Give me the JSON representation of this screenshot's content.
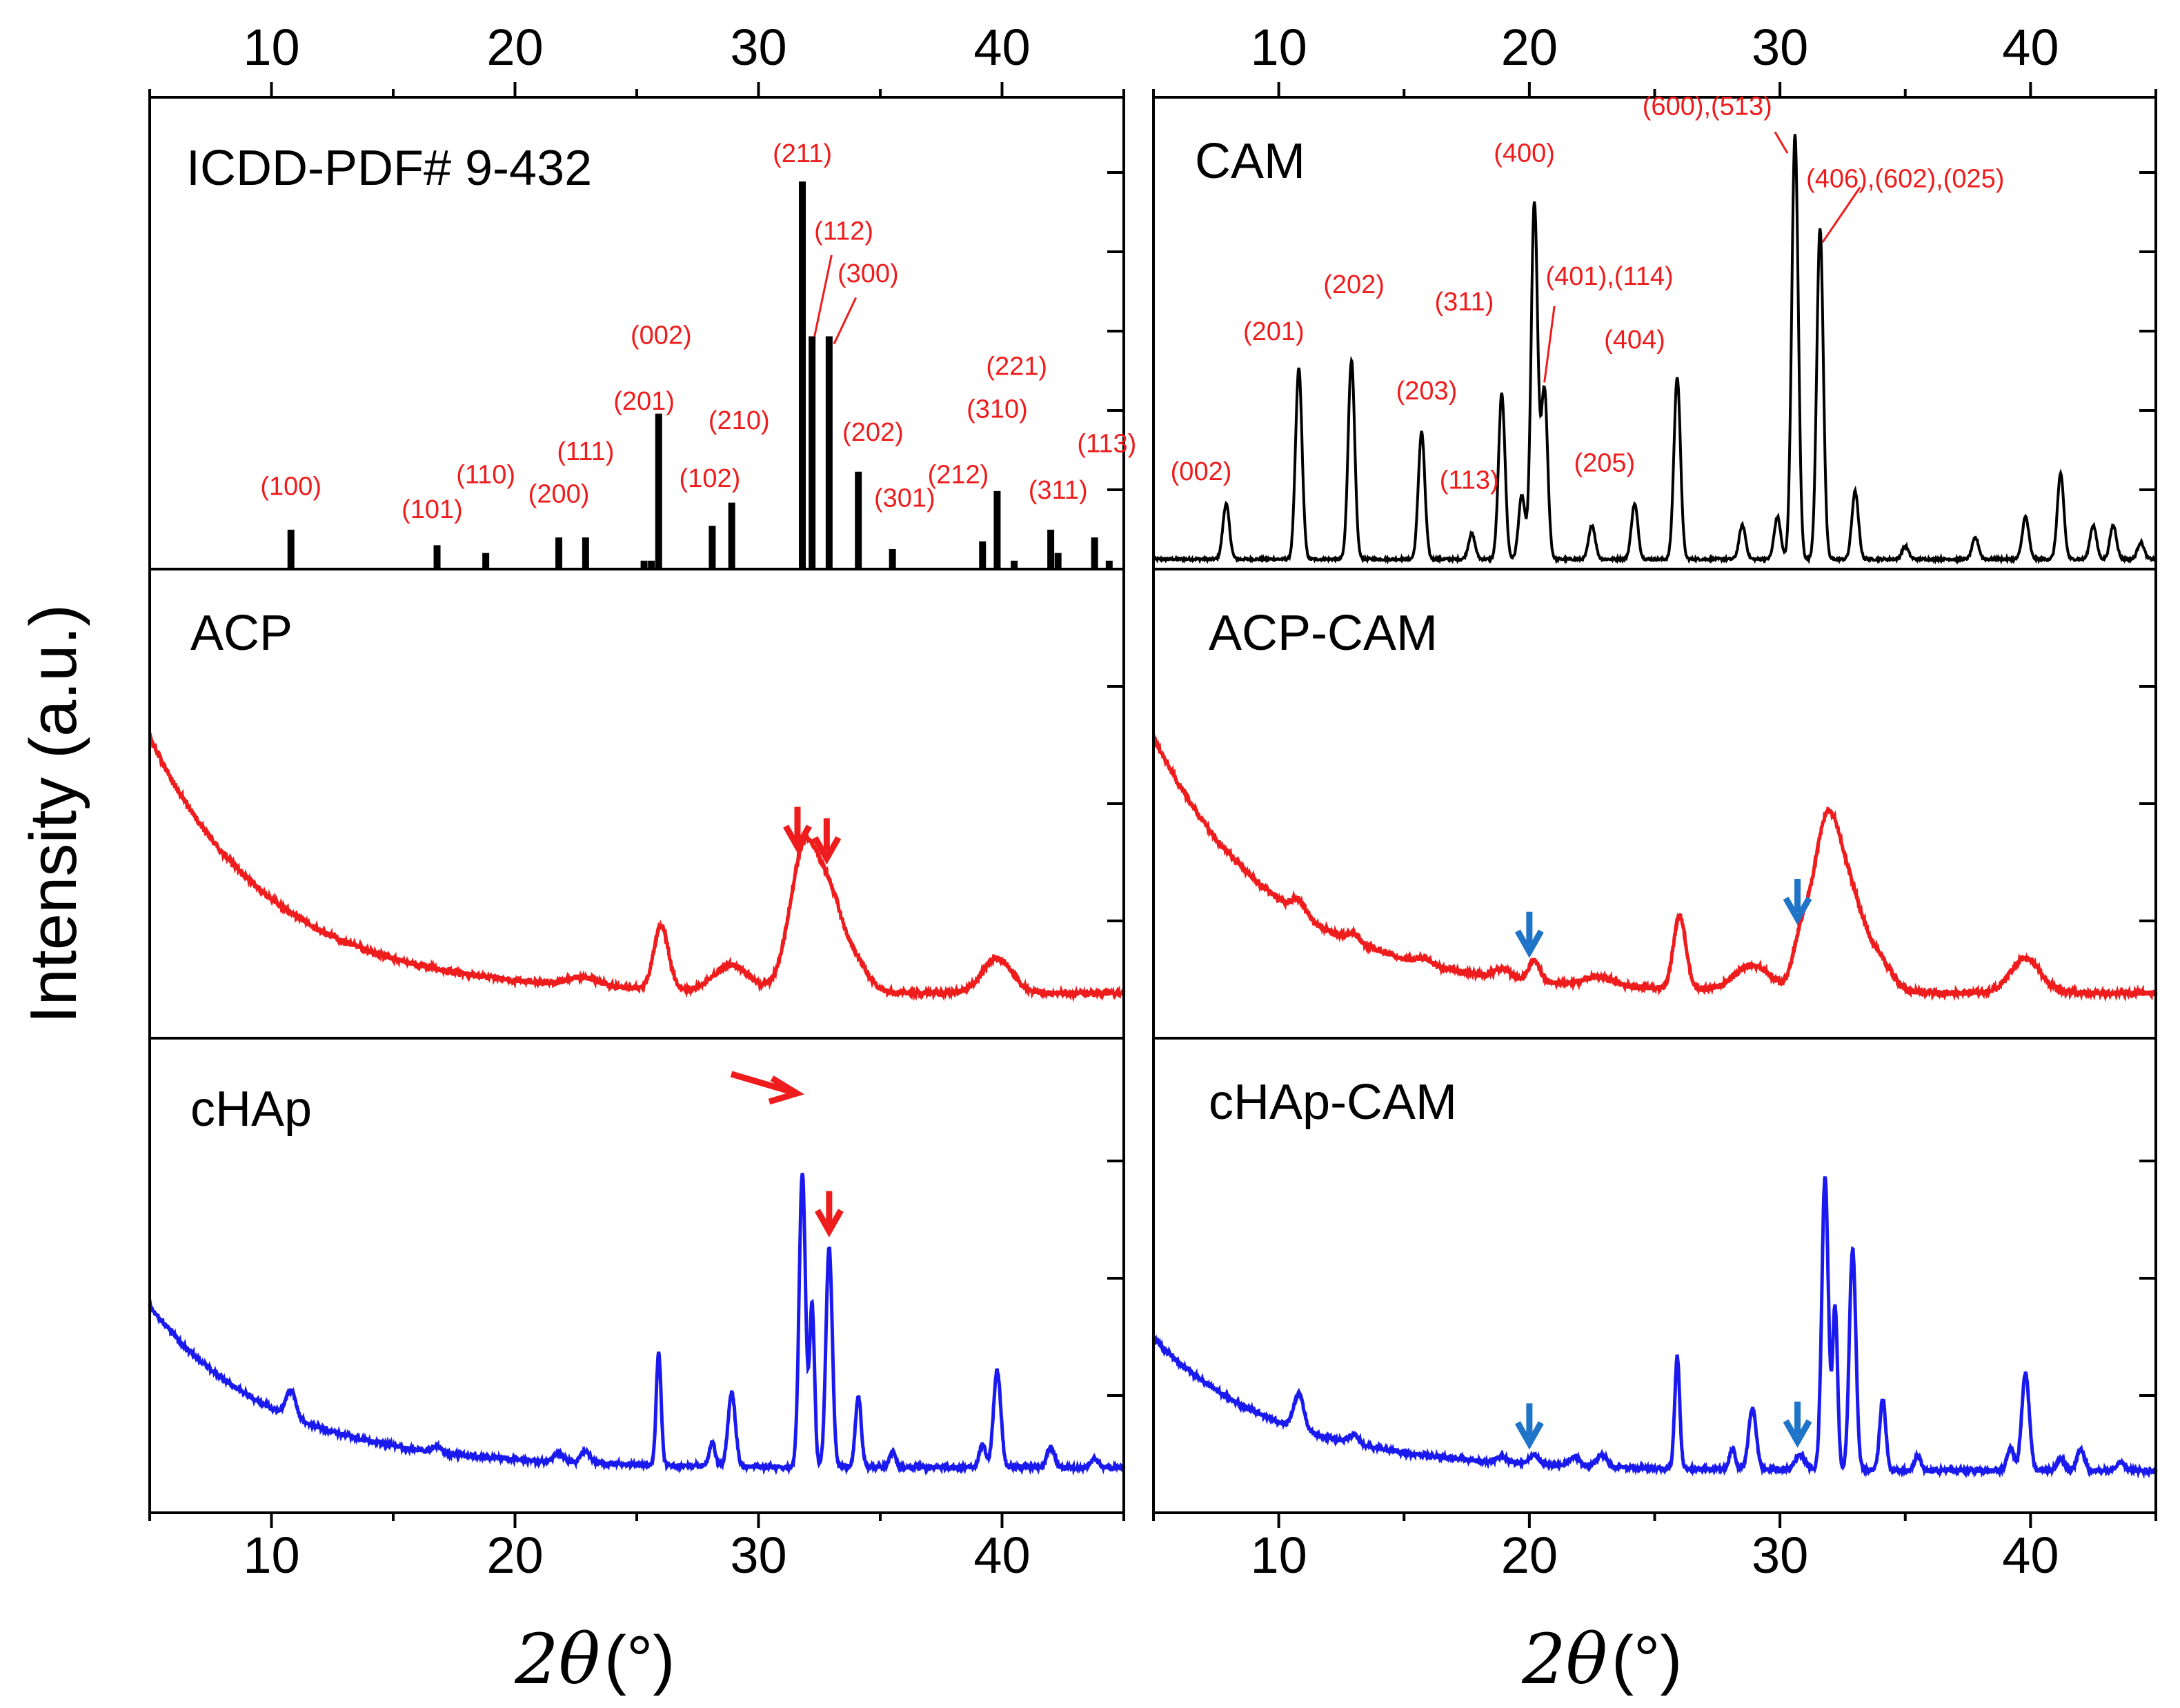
{
  "chart_data": {
    "type": "line",
    "title": "",
    "ylabel": "Intensity (a.u.)",
    "xlabel": {
      "symbol": "2θ",
      "unit": "(°)"
    },
    "xlim": [
      5,
      45
    ],
    "xticks": [
      10,
      20,
      30,
      40
    ],
    "colors": {
      "black": "#000000",
      "red": "#ee1c1c",
      "blue": "#1a1aee",
      "arrow_blue": "#1f74c8"
    },
    "reference": {
      "label": "ICDD-PDF# 9-432",
      "sticks": [
        {
          "x": 10.8,
          "y": 0.1
        },
        {
          "x": 16.8,
          "y": 0.06
        },
        {
          "x": 18.8,
          "y": 0.04
        },
        {
          "x": 21.8,
          "y": 0.08
        },
        {
          "x": 22.9,
          "y": 0.08
        },
        {
          "x": 25.3,
          "y": 0.02
        },
        {
          "x": 25.6,
          "y": 0.02
        },
        {
          "x": 25.9,
          "y": 0.4
        },
        {
          "x": 28.1,
          "y": 0.11
        },
        {
          "x": 28.9,
          "y": 0.17
        },
        {
          "x": 31.8,
          "y": 1.0
        },
        {
          "x": 32.2,
          "y": 0.6
        },
        {
          "x": 32.9,
          "y": 0.6
        },
        {
          "x": 34.1,
          "y": 0.25
        },
        {
          "x": 35.5,
          "y": 0.05
        },
        {
          "x": 39.2,
          "y": 0.07
        },
        {
          "x": 39.8,
          "y": 0.2
        },
        {
          "x": 40.5,
          "y": 0.02
        },
        {
          "x": 42.0,
          "y": 0.1
        },
        {
          "x": 42.3,
          "y": 0.04
        },
        {
          "x": 43.8,
          "y": 0.08
        },
        {
          "x": 44.4,
          "y": 0.02
        }
      ],
      "hkl_labels": [
        {
          "text": "(100)",
          "x": 10.8,
          "y": 0.19
        },
        {
          "text": "(101)",
          "x": 16.6,
          "y": 0.13
        },
        {
          "text": "(110)",
          "x": 18.8,
          "y": 0.22
        },
        {
          "text": "(111)",
          "x": 22.9,
          "y": 0.28
        },
        {
          "text": "(200)",
          "x": 21.8,
          "y": 0.17
        },
        {
          "text": "(201)",
          "x": 25.3,
          "y": 0.41
        },
        {
          "text": "(002)",
          "x": 26.0,
          "y": 0.58
        },
        {
          "text": "(210)",
          "x": 29.2,
          "y": 0.36
        },
        {
          "text": "(102)",
          "x": 28.0,
          "y": 0.21
        },
        {
          "text": "(211)",
          "x": 31.8,
          "y": 1.05
        },
        {
          "text": "(112)",
          "x": 33.5,
          "y": 0.85
        },
        {
          "text": "(300)",
          "x": 34.5,
          "y": 0.74
        },
        {
          "text": "(202)",
          "x": 34.7,
          "y": 0.33
        },
        {
          "text": "(301)",
          "x": 36.0,
          "y": 0.16
        },
        {
          "text": "(212)",
          "x": 38.2,
          "y": 0.22
        },
        {
          "text": "(310)",
          "x": 39.8,
          "y": 0.39
        },
        {
          "text": "(221)",
          "x": 40.6,
          "y": 0.5
        },
        {
          "text": "(311)",
          "x": 42.3,
          "y": 0.18
        },
        {
          "text": "(113)",
          "x": 44.3,
          "y": 0.3
        }
      ]
    },
    "samples": [
      {
        "name": "ACP",
        "panel": "left-middle",
        "color": "#ee1c1c",
        "baseline": {
          "a": 0.88,
          "tau": 5.0,
          "c": 0.06
        },
        "peaks": [
          {
            "x": 22.8,
            "h": 0.03,
            "w": 0.6
          },
          {
            "x": 26.0,
            "h": 0.22,
            "w": 0.3
          },
          {
            "x": 28.9,
            "h": 0.09,
            "w": 0.7
          },
          {
            "x": 31.9,
            "h": 0.5,
            "w": 0.6
          },
          {
            "x": 33.0,
            "h": 0.26,
            "w": 0.5
          },
          {
            "x": 34.0,
            "h": 0.1,
            "w": 0.5
          },
          {
            "x": 39.8,
            "h": 0.12,
            "w": 0.6
          }
        ],
        "arrows": [
          31.6,
          32.8
        ]
      },
      {
        "name": "cHAp",
        "panel": "left-bottom",
        "color": "#1a1aee",
        "baseline": {
          "a": 0.55,
          "tau": 5.0,
          "c": 0.06
        },
        "peaks": [
          {
            "x": 10.8,
            "h": 0.09,
            "w": 0.2
          },
          {
            "x": 16.8,
            "h": 0.02,
            "w": 0.2
          },
          {
            "x": 21.8,
            "h": 0.03,
            "w": 0.2
          },
          {
            "x": 22.9,
            "h": 0.04,
            "w": 0.2
          },
          {
            "x": 25.9,
            "h": 0.38,
            "w": 0.1
          },
          {
            "x": 28.1,
            "h": 0.08,
            "w": 0.12
          },
          {
            "x": 28.9,
            "h": 0.25,
            "w": 0.15
          },
          {
            "x": 31.8,
            "h": 1.0,
            "w": 0.13
          },
          {
            "x": 32.2,
            "h": 0.55,
            "w": 0.1
          },
          {
            "x": 32.9,
            "h": 0.75,
            "w": 0.13
          },
          {
            "x": 34.1,
            "h": 0.24,
            "w": 0.12
          },
          {
            "x": 35.5,
            "h": 0.05,
            "w": 0.12
          },
          {
            "x": 39.2,
            "h": 0.08,
            "w": 0.13
          },
          {
            "x": 39.8,
            "h": 0.33,
            "w": 0.15
          },
          {
            "x": 42.0,
            "h": 0.07,
            "w": 0.15
          },
          {
            "x": 43.8,
            "h": 0.03,
            "w": 0.15
          }
        ],
        "arrows": [
          32.9
        ],
        "slanted_arrow": 31.8
      },
      {
        "name": "ACP-CAM",
        "panel": "right-middle",
        "color": "#ee1c1c",
        "baseline": {
          "a": 0.88,
          "tau": 5.0,
          "c": 0.06
        },
        "peaks": [
          {
            "x": 10.8,
            "h": 0.05,
            "w": 0.25
          },
          {
            "x": 13.0,
            "h": 0.03,
            "w": 0.25
          },
          {
            "x": 15.8,
            "h": 0.02,
            "w": 0.25
          },
          {
            "x": 18.9,
            "h": 0.03,
            "w": 0.3
          },
          {
            "x": 20.2,
            "h": 0.07,
            "w": 0.22
          },
          {
            "x": 22.8,
            "h": 0.03,
            "w": 0.6
          },
          {
            "x": 26.0,
            "h": 0.25,
            "w": 0.25
          },
          {
            "x": 28.9,
            "h": 0.09,
            "w": 0.7
          },
          {
            "x": 30.8,
            "h": 0.12,
            "w": 0.3
          },
          {
            "x": 31.9,
            "h": 0.6,
            "w": 0.6
          },
          {
            "x": 33.0,
            "h": 0.22,
            "w": 0.5
          },
          {
            "x": 34.0,
            "h": 0.1,
            "w": 0.5
          },
          {
            "x": 39.8,
            "h": 0.12,
            "w": 0.6
          }
        ],
        "arrows": [
          20.0,
          30.7
        ]
      },
      {
        "name": "cHAp-CAM",
        "panel": "right-bottom",
        "color": "#1a1aee",
        "baseline": {
          "a": 0.45,
          "tau": 5.0,
          "c": 0.05
        },
        "peaks": [
          {
            "x": 10.8,
            "h": 0.12,
            "w": 0.2
          },
          {
            "x": 13.0,
            "h": 0.03,
            "w": 0.2
          },
          {
            "x": 18.9,
            "h": 0.02,
            "w": 0.2
          },
          {
            "x": 20.2,
            "h": 0.03,
            "w": 0.2
          },
          {
            "x": 21.8,
            "h": 0.03,
            "w": 0.2
          },
          {
            "x": 22.9,
            "h": 0.04,
            "w": 0.2
          },
          {
            "x": 25.9,
            "h": 0.38,
            "w": 0.1
          },
          {
            "x": 28.1,
            "h": 0.07,
            "w": 0.12
          },
          {
            "x": 28.9,
            "h": 0.21,
            "w": 0.15
          },
          {
            "x": 30.8,
            "h": 0.05,
            "w": 0.2
          },
          {
            "x": 31.8,
            "h": 1.0,
            "w": 0.13
          },
          {
            "x": 32.2,
            "h": 0.55,
            "w": 0.1
          },
          {
            "x": 32.9,
            "h": 0.75,
            "w": 0.13
          },
          {
            "x": 34.1,
            "h": 0.24,
            "w": 0.12
          },
          {
            "x": 35.5,
            "h": 0.05,
            "w": 0.12
          },
          {
            "x": 39.2,
            "h": 0.08,
            "w": 0.13
          },
          {
            "x": 39.8,
            "h": 0.33,
            "w": 0.15
          },
          {
            "x": 41.2,
            "h": 0.04,
            "w": 0.15
          },
          {
            "x": 42.0,
            "h": 0.07,
            "w": 0.15
          },
          {
            "x": 43.6,
            "h": 0.03,
            "w": 0.15
          }
        ],
        "arrows": [
          20.0,
          30.7
        ]
      }
    ],
    "cam": {
      "label": "CAM",
      "peaks": [
        {
          "x": 7.9,
          "h": 0.13
        },
        {
          "x": 10.8,
          "h": 0.45
        },
        {
          "x": 12.9,
          "h": 0.47
        },
        {
          "x": 15.7,
          "h": 0.3
        },
        {
          "x": 17.7,
          "h": 0.06
        },
        {
          "x": 18.9,
          "h": 0.39
        },
        {
          "x": 19.7,
          "h": 0.15
        },
        {
          "x": 20.2,
          "h": 0.84
        },
        {
          "x": 20.6,
          "h": 0.4
        },
        {
          "x": 22.5,
          "h": 0.08
        },
        {
          "x": 24.2,
          "h": 0.13
        },
        {
          "x": 25.9,
          "h": 0.43
        },
        {
          "x": 28.5,
          "h": 0.08
        },
        {
          "x": 29.9,
          "h": 0.1
        },
        {
          "x": 30.6,
          "h": 1.0
        },
        {
          "x": 31.6,
          "h": 0.78
        },
        {
          "x": 33.0,
          "h": 0.16
        },
        {
          "x": 35.0,
          "h": 0.03
        },
        {
          "x": 37.8,
          "h": 0.05
        },
        {
          "x": 39.8,
          "h": 0.1
        },
        {
          "x": 41.2,
          "h": 0.2
        },
        {
          "x": 42.5,
          "h": 0.08
        },
        {
          "x": 43.3,
          "h": 0.08
        },
        {
          "x": 44.4,
          "h": 0.04
        }
      ],
      "hkl_labels": [
        {
          "text": "(002)",
          "x": 6.9,
          "y": 0.19
        },
        {
          "text": "(201)",
          "x": 9.8,
          "y": 0.52
        },
        {
          "text": "(202)",
          "x": 13.0,
          "y": 0.63
        },
        {
          "text": "(203)",
          "x": 15.9,
          "y": 0.38
        },
        {
          "text": "(113)",
          "x": 17.6,
          "y": 0.17
        },
        {
          "text": "(311)",
          "x": 17.4,
          "y": 0.59
        },
        {
          "text": "(400)",
          "x": 19.8,
          "y": 0.94
        },
        {
          "text": "(401),(114)",
          "x": 23.2,
          "y": 0.65
        },
        {
          "text": "(404)",
          "x": 24.2,
          "y": 0.5
        },
        {
          "text": "(205)",
          "x": 23.0,
          "y": 0.21
        },
        {
          "text": "(600),(513)",
          "x": 27.1,
          "y": 1.05
        },
        {
          "text": "(406),(602),(025)",
          "x": 35.0,
          "y": 0.88
        }
      ]
    }
  }
}
